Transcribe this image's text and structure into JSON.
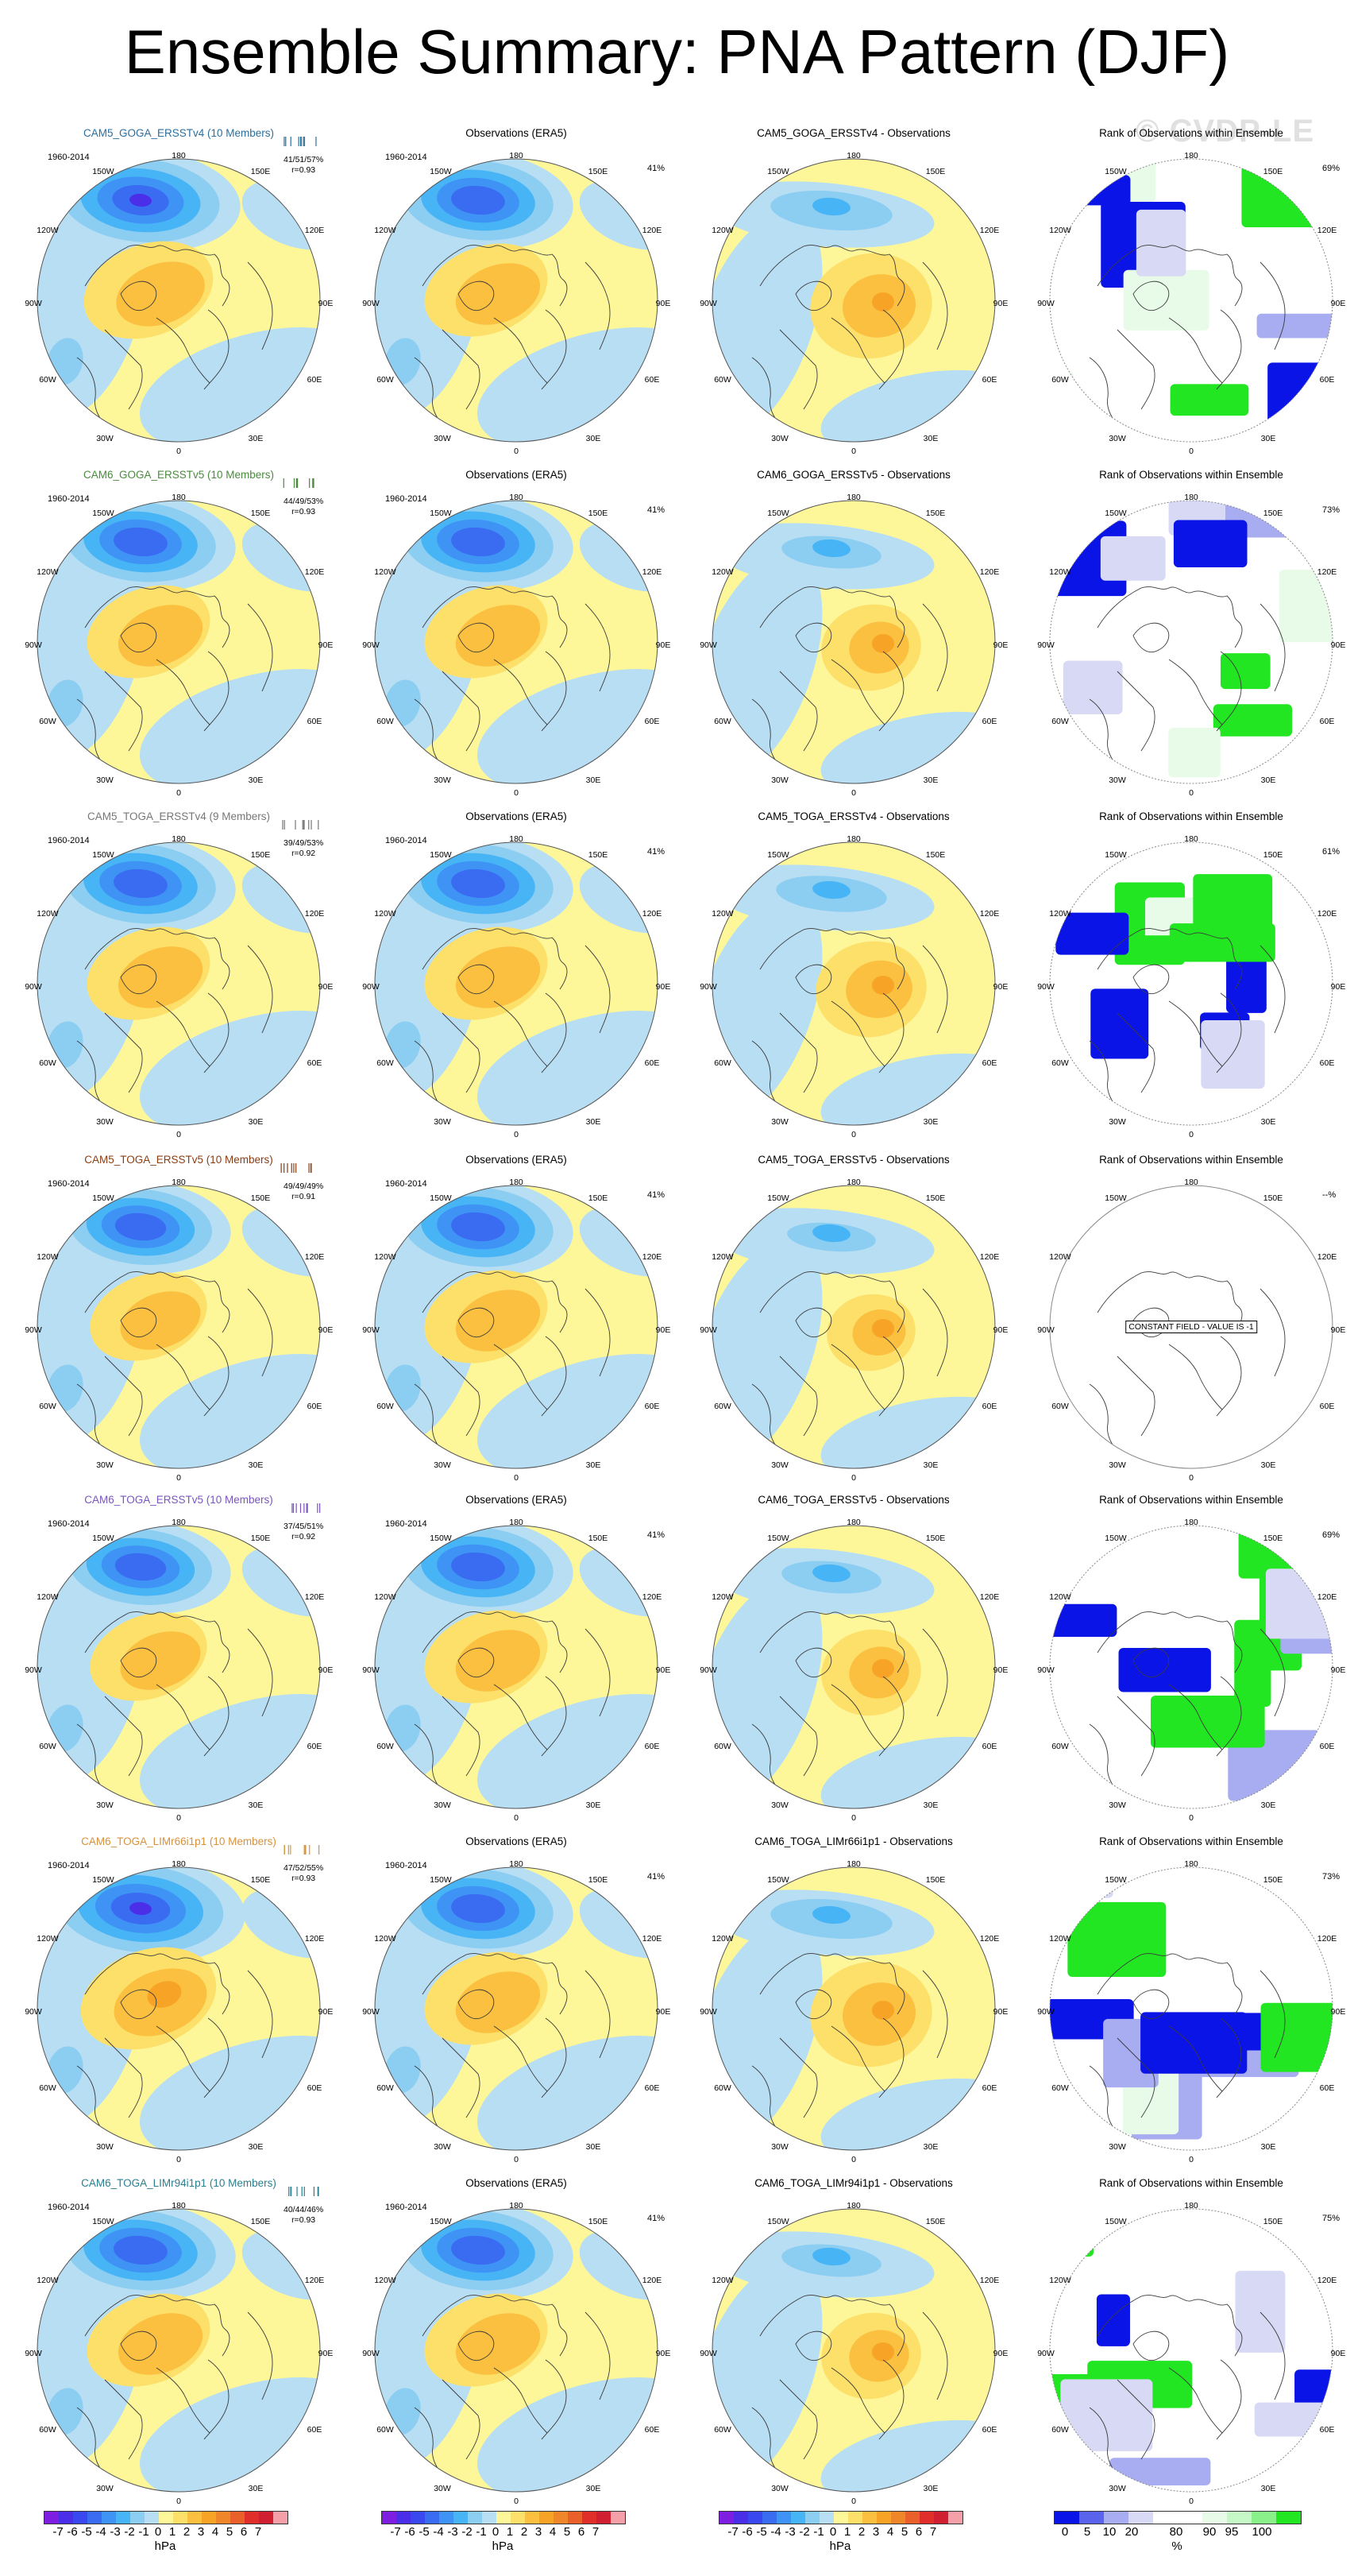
{
  "title": "Ensemble Summary: PNA Pattern (DJF)",
  "watermark": "© CVDP-LE",
  "obs_title": "Observations (ERA5)",
  "rank_title": "Rank of Observations within Ensemble",
  "obs_percent": "41%",
  "constant_field_label": "CONSTANT FIELD - VALUE IS -1",
  "longitude_labels": {
    "top": "180",
    "ul": "150W",
    "ur": "150E",
    "ml": "120W",
    "mr": "120E",
    "l": "90W",
    "r": "90E",
    "ll": "60W",
    "lr": "60E",
    "bl": "30W",
    "br": "30E",
    "bottom": "0"
  },
  "rows": [
    {
      "model_title": "CAM5_GOGA_ERSSTv4 (10 Members)",
      "model_color": "#2a6f9e",
      "period": "1960-2014",
      "stat_line1": "41/51/57%",
      "stat_line2": "r=0.93",
      "diff_title": "CAM5_GOGA_ERSSTv4 - Observations",
      "rank_percent": "69%",
      "strength": 1.05,
      "diff_strength": 0.55,
      "rank_type": "full"
    },
    {
      "model_title": "CAM6_GOGA_ERSSTv5 (10 Members)",
      "model_color": "#4a8a3c",
      "period": "1960-2014",
      "stat_line1": "44/49/53%",
      "stat_line2": "r=0.93",
      "diff_title": "CAM6_GOGA_ERSSTv5 - Observations",
      "rank_percent": "73%",
      "strength": 1.0,
      "diff_strength": 0.45,
      "rank_type": "full"
    },
    {
      "model_title": "CAM5_TOGA_ERSSTv4 (9 Members)",
      "model_color": "#777777",
      "period": "1960-2014",
      "stat_line1": "39/49/53%",
      "stat_line2": "r=0.92",
      "diff_title": "CAM5_TOGA_ERSSTv4 - Observations",
      "rank_percent": "61%",
      "strength": 1.0,
      "diff_strength": 0.5,
      "rank_type": "full"
    },
    {
      "model_title": "CAM5_TOGA_ERSSTv5 (10 Members)",
      "model_color": "#8a3d12",
      "period": "1960-2014",
      "stat_line1": "49/49/49%",
      "stat_line2": "r=0.91",
      "diff_title": "CAM5_TOGA_ERSSTv5 - Observations",
      "rank_percent": "--%",
      "strength": 0.95,
      "diff_strength": 0.4,
      "rank_type": "constant"
    },
    {
      "model_title": "CAM6_TOGA_ERSSTv5 (10 Members)",
      "model_color": "#7a55c0",
      "period": "1960-2014",
      "stat_line1": "37/45/51%",
      "stat_line2": "r=0.92",
      "diff_title": "CAM6_TOGA_ERSSTv5 - Observations",
      "rank_percent": "69%",
      "strength": 0.95,
      "diff_strength": 0.45,
      "rank_type": "full"
    },
    {
      "model_title": "CAM6_TOGA_LIMr66i1p1 (10 Members)",
      "model_color": "#d9923a",
      "period": "1960-2014",
      "stat_line1": "47/52/55%",
      "stat_line2": "r=0.93",
      "diff_title": "CAM6_TOGA_LIMr66i1p1 - Observations",
      "rank_percent": "73%",
      "strength": 1.1,
      "diff_strength": 0.55,
      "rank_type": "full"
    },
    {
      "model_title": "CAM6_TOGA_LIMr94i1p1 (10 Members)",
      "model_color": "#2a7f8f",
      "period": "1960-2014",
      "stat_line1": "40/44/46%",
      "stat_line2": "r=0.93",
      "diff_title": "CAM6_TOGA_LIMr94i1p1 - Observations",
      "rank_percent": "75%",
      "strength": 1.0,
      "diff_strength": 0.45,
      "rank_type": "full"
    }
  ],
  "hpa_colorbar": {
    "colors": [
      "#7d1ee0",
      "#4b2ee8",
      "#3a48f0",
      "#3a6cf2",
      "#3f93f5",
      "#47b5f5",
      "#8ccdf2",
      "#b8def3",
      "#fdf79a",
      "#fde06a",
      "#fbc040",
      "#f7a426",
      "#f0862a",
      "#e9602a",
      "#e02f2a",
      "#d01f30",
      "#f5a0a8"
    ],
    "tick_labels": [
      "-7",
      "-6",
      "-5",
      "-4",
      "-3",
      "-2",
      "-1",
      "0",
      "1",
      "2",
      "3",
      "4",
      "5",
      "6",
      "7"
    ],
    "unit": "hPa"
  },
  "rank_colorbar": {
    "colors": [
      "#0a14e6",
      "#5a63ec",
      "#a8acf0",
      "#d8daf5",
      "#ffffff",
      "#ffffff",
      "#e8fbe8",
      "#c6f7c6",
      "#8af08a",
      "#22e622"
    ],
    "tick_labels": [
      "0",
      "5",
      "10",
      "20",
      "80",
      "90",
      "95",
      "100"
    ],
    "unit": "%"
  }
}
